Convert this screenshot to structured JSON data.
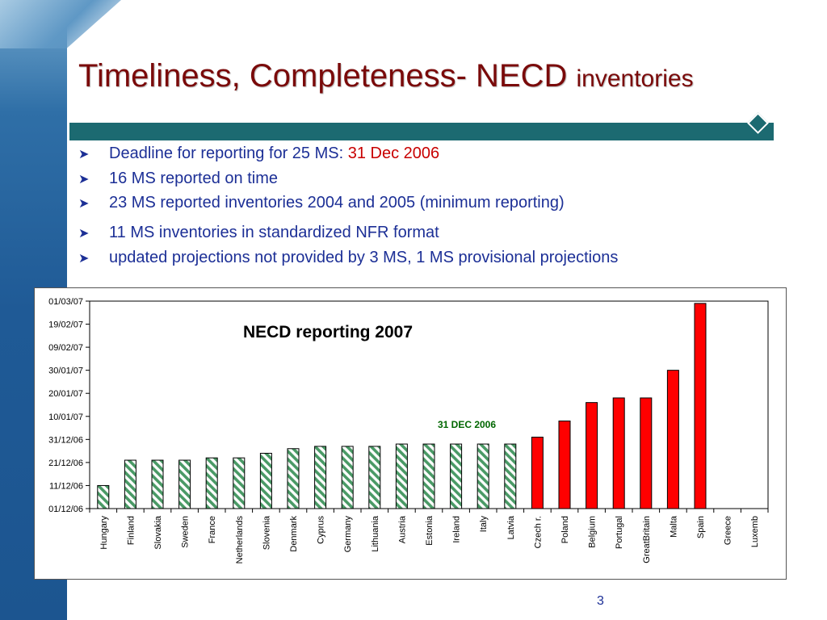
{
  "slide": {
    "title_main": "Timeliness, Completeness- NECD",
    "title_suffix": "inventories",
    "page_number": "3",
    "accent_color": "#1c6a71",
    "title_color": "#7a0a0a",
    "text_color": "#1c2f96"
  },
  "bullets": [
    {
      "text": "Deadline for reporting for 25 MS: ",
      "highlight": "31 Dec 2006"
    },
    {
      "text": "16 MS reported on time",
      "highlight": ""
    },
    {
      "text": "23 MS reported inventories  2004 and 2005 (minimum reporting)",
      "highlight": ""
    },
    {
      "text": "11 MS inventories in standardized NFR format",
      "highlight": ""
    },
    {
      "text": "updated projections not provided by 3 MS, 1 MS provisional projections",
      "highlight": ""
    }
  ],
  "chart_data": {
    "type": "bar",
    "title": "NECD reporting 2007",
    "annotation": "31 DEC 2006",
    "annotation_color": "#006600",
    "grid": false,
    "y_is_date": true,
    "ylim": [
      "01/12/06",
      "01/03/07"
    ],
    "y_ticks": [
      "01/12/06",
      "11/12/06",
      "21/12/06",
      "31/12/06",
      "10/01/07",
      "20/01/07",
      "30/01/07",
      "09/02/07",
      "19/02/07",
      "01/03/07"
    ],
    "categories": [
      "Hungary",
      "Finland",
      "Slovakia",
      "Sweden",
      "France",
      "Netherlands",
      "Slovenia",
      "Denmark",
      "Cyprus",
      "Germany",
      "Lithuania",
      "Austria",
      "Estonia",
      "Ireland",
      "Italy",
      "Latvia",
      "Czech r.",
      "Poland",
      "Belgium",
      "Portugal",
      "GreatBritain",
      "Malta",
      "Spain",
      "Greece",
      "Luxemb"
    ],
    "values": [
      "2006-12-11",
      "2006-12-22",
      "2006-12-22",
      "2006-12-22",
      "2006-12-23",
      "2006-12-23",
      "2006-12-25",
      "2006-12-27",
      "2006-12-28",
      "2006-12-28",
      "2006-12-28",
      "2006-12-29",
      "2006-12-29",
      "2006-12-29",
      "2006-12-29",
      "2006-12-29",
      "2007-01-01",
      "2007-01-08",
      "2007-01-16",
      "2007-01-18",
      "2007-01-18",
      "2007-01-30",
      "2007-02-28",
      null,
      null
    ],
    "status": [
      "on_time",
      "on_time",
      "on_time",
      "on_time",
      "on_time",
      "on_time",
      "on_time",
      "on_time",
      "on_time",
      "on_time",
      "on_time",
      "on_time",
      "on_time",
      "on_time",
      "on_time",
      "on_time",
      "late",
      "late",
      "late",
      "late",
      "late",
      "late",
      "late",
      "none",
      "none"
    ],
    "colors": {
      "on_time": "#4a9a66",
      "late": "#ff0000"
    }
  }
}
